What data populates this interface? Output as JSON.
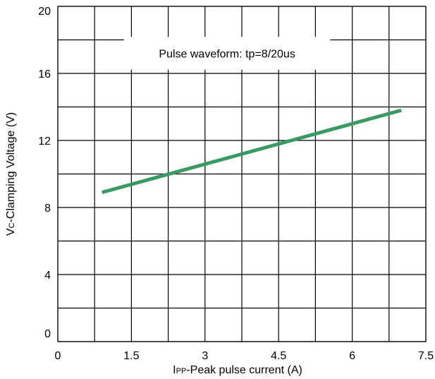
{
  "chart_data": {
    "type": "line",
    "title": "",
    "annotation": "Pulse waveform: tp=8/20us",
    "xlabel": {
      "main": "I",
      "sub": "PP",
      "rest": "-Peak pulse current (A)"
    },
    "ylabel": {
      "main": "V",
      "sub": "C",
      "rest": "-Clamping Voltage (V)"
    },
    "xlim": [
      0,
      7.5
    ],
    "ylim": [
      0,
      20
    ],
    "x_ticks": [
      0,
      1.5,
      3,
      4.5,
      6,
      7.5
    ],
    "x_tick_labels": [
      "0",
      "1.5",
      "3",
      "4.5",
      "6",
      "7.5"
    ],
    "y_ticks": [
      0,
      4,
      8,
      12,
      16,
      20
    ],
    "y_tick_labels": [
      "0",
      "4",
      "8",
      "12",
      "16",
      "20"
    ],
    "grid": true,
    "grid_x_step": 0.75,
    "grid_y_step": 2,
    "series": [
      {
        "color": "#3a9a64",
        "x": [
          0.9,
          7.0
        ],
        "y": [
          8.9,
          13.8
        ]
      }
    ]
  }
}
